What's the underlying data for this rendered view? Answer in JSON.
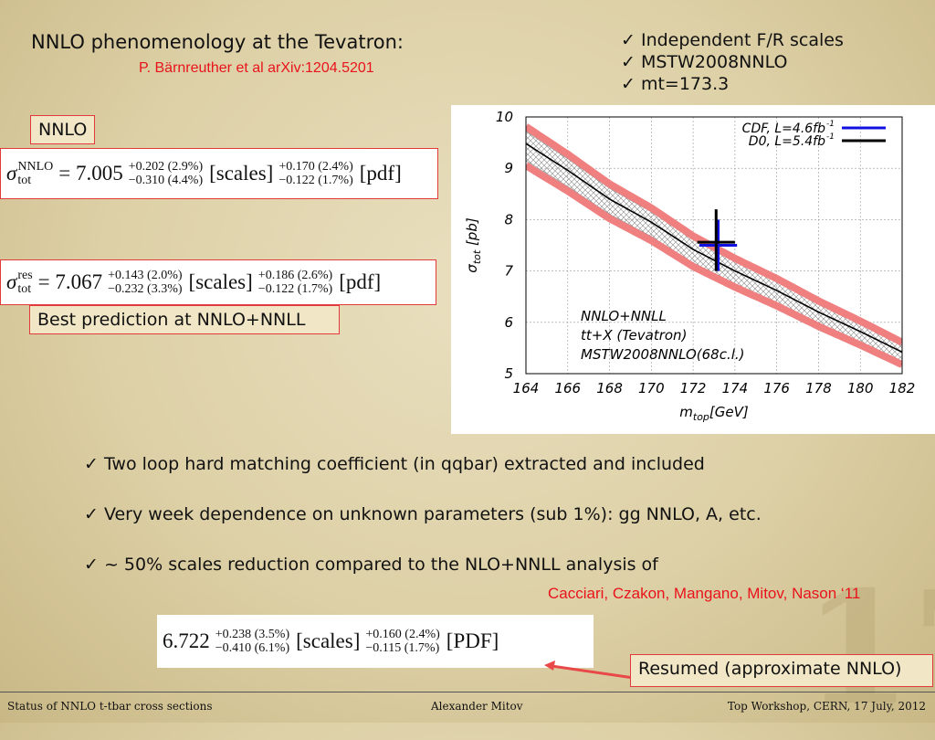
{
  "title": "NNLO phenomenology at the Tevatron:",
  "reference": "P. Bärnreuther et al arXiv:1204.5201",
  "checks": [
    "Independent F/R scales",
    "MSTW2008NNLO",
    "mt=173.3"
  ],
  "check_icon": "✓",
  "nnlo_label": "NNLO",
  "formula_nnlo": {
    "symbol": "σ",
    "sup": "NNLO",
    "sub": "tot",
    "value": "= 7.005",
    "scales_up": "+0.202 (2.9%)",
    "scales_down": "−0.310 (4.4%)",
    "scales_label": "[scales]",
    "pdf_up": "+0.170 (2.4%)",
    "pdf_down": "−0.122 (1.7%)",
    "pdf_label": "[pdf]"
  },
  "formula_res": {
    "symbol": "σ",
    "sup": "res",
    "sub": "tot",
    "value": "= 7.067",
    "scales_up": "+0.143 (2.0%)",
    "scales_down": "−0.232 (3.3%)",
    "scales_label": "[scales]",
    "pdf_up": "+0.186 (2.6%)",
    "pdf_down": "−0.122 (1.7%)",
    "pdf_label": "[pdf]"
  },
  "best_label": "Best prediction at NNLO+NNLL",
  "bullets": [
    "Two loop hard matching coefficient (in qqbar) extracted and included",
    "Very week dependence on unknown parameters (sub 1%): gg NNLO, A, etc.",
    "~ 50% scales reduction compared to the NLO+NNLL analysis of"
  ],
  "citation": "Cacciari, Czakon, Mangano, Mitov, Nason ‘11",
  "formula_old": {
    "value": "6.722",
    "scales_up": "+0.238 (3.5%)",
    "scales_down": "−0.410 (6.1%)",
    "scales_label": "[scales]",
    "pdf_up": "+0.160 (2.4%)",
    "pdf_down": "−0.115 (1.7%)",
    "pdf_label": "[PDF]"
  },
  "resumed_label": "Resumed (approximate NNLO)",
  "slide_number": "17",
  "footer": {
    "left": "Status of NNLO t-tbar cross sections",
    "center": "Alexander Mitov",
    "right": "Top Workshop, CERN, 17 July, 2012"
  },
  "chart_data": {
    "type": "line",
    "xlabel": "m_top[GeV]",
    "xlabel_main": "m",
    "xlabel_sub": "top",
    "xlabel_unit": "[GeV]",
    "ylabel_main": "σ",
    "ylabel_sub": "tot",
    "ylabel_unit": " [pb]",
    "xlim": [
      164,
      182
    ],
    "ylim": [
      5,
      10
    ],
    "xticks": [
      164,
      166,
      168,
      170,
      172,
      174,
      176,
      178,
      180,
      182
    ],
    "yticks": [
      5,
      6,
      7,
      8,
      9,
      10
    ],
    "grid": true,
    "central": {
      "x": [
        164,
        166,
        168,
        170,
        172,
        174,
        176,
        178,
        180,
        182
      ],
      "y": [
        9.48,
        8.96,
        8.4,
        7.95,
        7.42,
        7.0,
        6.62,
        6.2,
        5.82,
        5.42
      ]
    },
    "scale_band_frac": [
      -0.035,
      0.025
    ],
    "pdf_band_frac": [
      -0.045,
      0.035
    ],
    "colors": {
      "pdf_band": "#f08080",
      "central": "#000000",
      "cdf": "#1010e0",
      "d0": "#000000"
    },
    "annotations": [
      "NNLO+NNLL",
      "tt+X (Tevatron)",
      "MSTW2008NNLO(68c.l.)"
    ],
    "legend_position": "top-right",
    "measurements": [
      {
        "name": "CDF, L=4.6fb",
        "sup": "-1",
        "x": 173.2,
        "xerr": 0.9,
        "y": 7.5,
        "yerr": 0.5,
        "color": "#1010e0"
      },
      {
        "name": "D0, L=5.4fb",
        "sup": "-1",
        "x": 173.1,
        "xerr": 0.9,
        "y": 7.56,
        "yerr_up": 0.64,
        "yerr_down": 0.56,
        "color": "#000000"
      }
    ]
  }
}
